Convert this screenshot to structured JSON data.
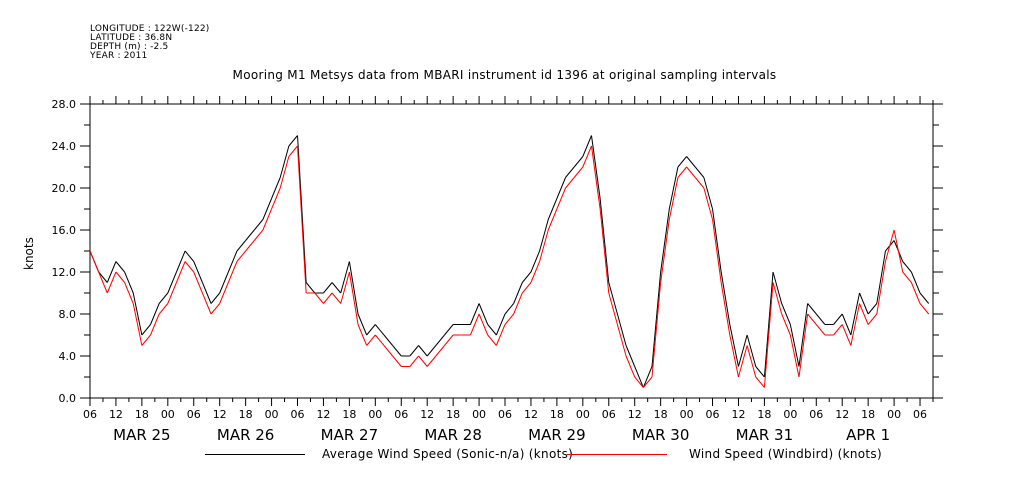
{
  "header": {
    "longitude": "LONGITUDE : 122W(-122)",
    "latitude": "LATITUDE : 36.8N",
    "depth": "DEPTH (m) : -2.5",
    "year": "YEAR : 2011"
  },
  "chart_data": {
    "type": "line",
    "title": "Mooring M1 Metsys data from MBARI instrument id 1396 at original sampling intervals",
    "ylabel": "knots",
    "xlabel": "",
    "ylim": [
      0,
      28
    ],
    "y_ticks": [
      "0.0",
      "4.0",
      "8.0",
      "12.0",
      "16.0",
      "20.0",
      "24.0",
      "28.0"
    ],
    "x_hour_labels": [
      "06",
      "12",
      "18",
      "00",
      "06",
      "12",
      "18",
      "00",
      "06",
      "12",
      "18",
      "00",
      "06",
      "12",
      "18",
      "00",
      "06",
      "12",
      "18",
      "00",
      "06",
      "12",
      "18",
      "00",
      "06",
      "12",
      "18",
      "00",
      "06",
      "12",
      "18",
      "00",
      "06"
    ],
    "x_day_labels": [
      "MAR 25",
      "MAR 26",
      "MAR 27",
      "MAR 28",
      "MAR 29",
      "MAR 30",
      "MAR 31",
      "APR 1"
    ],
    "x_range_hours": [
      0,
      195
    ],
    "grid": false,
    "legend_position": "bottom",
    "series": [
      {
        "name": "Average Wind Speed (Sonic-n/a) (knots)",
        "color": "#000000",
        "x": [
          0,
          2,
          4,
          6,
          8,
          10,
          12,
          14,
          16,
          18,
          20,
          22,
          24,
          26,
          28,
          30,
          32,
          34,
          36,
          38,
          40,
          42,
          44,
          46,
          48,
          50,
          52,
          54,
          56,
          58,
          60,
          62,
          64,
          66,
          68,
          70,
          72,
          74,
          76,
          78,
          80,
          82,
          84,
          86,
          88,
          90,
          92,
          94,
          96,
          98,
          100,
          102,
          104,
          106,
          108,
          110,
          112,
          114,
          116,
          118,
          120,
          122,
          124,
          126,
          128,
          130,
          132,
          134,
          136,
          138,
          140,
          142,
          144,
          146,
          148,
          150,
          152,
          154,
          156,
          158,
          160,
          162,
          164,
          166,
          168,
          170,
          172,
          174,
          176,
          178,
          180,
          182,
          184,
          186,
          188,
          190,
          192,
          194
        ],
        "y": [
          14,
          12,
          11,
          13,
          12,
          10,
          6,
          7,
          9,
          10,
          12,
          14,
          13,
          11,
          9,
          10,
          12,
          14,
          15,
          16,
          17,
          19,
          21,
          24,
          25,
          11,
          10,
          10,
          11,
          10,
          13,
          8,
          6,
          7,
          6,
          5,
          4,
          4,
          5,
          4,
          5,
          6,
          7,
          7,
          7,
          9,
          7,
          6,
          8,
          9,
          11,
          12,
          14,
          17,
          19,
          21,
          22,
          23,
          25,
          19,
          11,
          8,
          5,
          3,
          1,
          3,
          12,
          18,
          22,
          23,
          22,
          21,
          18,
          12,
          7,
          3,
          6,
          3,
          2,
          12,
          9,
          7,
          3,
          9,
          8,
          7,
          7,
          8,
          6,
          10,
          8,
          9,
          14,
          15,
          13,
          12,
          10,
          9
        ]
      },
      {
        "name": "Wind Speed (Windbird) (knots)",
        "color": "#ff0000",
        "x": [
          0,
          2,
          4,
          6,
          8,
          10,
          12,
          14,
          16,
          18,
          20,
          22,
          24,
          26,
          28,
          30,
          32,
          34,
          36,
          38,
          40,
          42,
          44,
          46,
          48,
          50,
          52,
          54,
          56,
          58,
          60,
          62,
          64,
          66,
          68,
          70,
          72,
          74,
          76,
          78,
          80,
          82,
          84,
          86,
          88,
          90,
          92,
          94,
          96,
          98,
          100,
          102,
          104,
          106,
          108,
          110,
          112,
          114,
          116,
          118,
          120,
          122,
          124,
          126,
          128,
          130,
          132,
          134,
          136,
          138,
          140,
          142,
          144,
          146,
          148,
          150,
          152,
          154,
          156,
          158,
          160,
          162,
          164,
          166,
          168,
          170,
          172,
          174,
          176,
          178,
          180,
          182,
          184,
          186,
          188,
          190,
          192,
          194
        ],
        "y": [
          14,
          12,
          10,
          12,
          11,
          9,
          5,
          6,
          8,
          9,
          11,
          13,
          12,
          10,
          8,
          9,
          11,
          13,
          14,
          15,
          16,
          18,
          20,
          23,
          24,
          10,
          10,
          9,
          10,
          9,
          12,
          7,
          5,
          6,
          5,
          4,
          3,
          3,
          4,
          3,
          4,
          5,
          6,
          6,
          6,
          8,
          6,
          5,
          7,
          8,
          10,
          11,
          13,
          16,
          18,
          20,
          21,
          22,
          24,
          18,
          10,
          7,
          4,
          2,
          1,
          2,
          11,
          17,
          21,
          22,
          21,
          20,
          17,
          11,
          6,
          2,
          5,
          2,
          1,
          11,
          8,
          6,
          2,
          8,
          7,
          6,
          6,
          7,
          5,
          9,
          7,
          8,
          13,
          16,
          12,
          11,
          9,
          8
        ]
      }
    ]
  }
}
